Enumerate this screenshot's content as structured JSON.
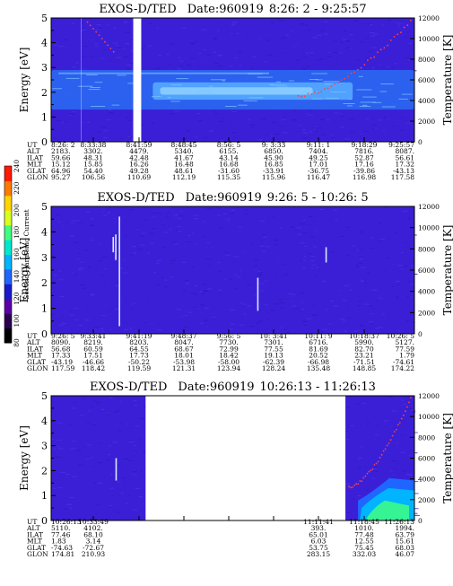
{
  "chart_data": [
    {
      "type": "heatmap",
      "title_prefix": "EXOS-D/TED",
      "date": "Date:960919",
      "time_range": "8:26: 2 - 9:25:57",
      "ylabel": "Energy [eV]",
      "y2label": "Temperature [K]",
      "ylim": [
        0,
        5
      ],
      "yticks": [
        "0",
        "1",
        "2",
        "3",
        "4",
        "5"
      ],
      "y2lim": [
        0,
        12000
      ],
      "y2ticks": [
        "0",
        "2000",
        "4000",
        "6000",
        "8000",
        "10000",
        "12000"
      ],
      "gaps": [
        [
          8.3,
          8.38
        ],
        [
          22.6,
          24.8
        ]
      ],
      "bands": [
        {
          "ylo": 1.3,
          "yhi": 2.9,
          "xfrom": 0,
          "xto": 100,
          "color": "#2a6cf2",
          "opacity": 0.85
        },
        {
          "ylo": 1.7,
          "yhi": 2.4,
          "xfrom": 28,
          "xto": 83,
          "color": "#55aaff",
          "opacity": 0.9
        },
        {
          "ylo": 1.9,
          "yhi": 2.2,
          "xfrom": 30,
          "xto": 72,
          "color": "#9ddcff",
          "opacity": 0.7
        }
      ],
      "temperature_dots": {
        "x_start": 68,
        "x_end": 99,
        "t_start": 4400,
        "t_end": 11700
      },
      "orbit": {
        "labels": [
          "UT",
          "ALT",
          "ILAT",
          "MLT",
          "GLAT",
          "GLON"
        ],
        "columns": [
          [
            "8:26: 2",
            "2183.",
            "59.66",
            "15.12",
            "64.96",
            "95.27"
          ],
          [
            "8:33:38",
            "3302.",
            "48.31",
            "15.85",
            "54.40",
            "106.56"
          ],
          [
            "8:41:59",
            "4479.",
            "42.48",
            "16.26",
            "49.28",
            "110.69"
          ],
          [
            "8:48:45",
            "5340.",
            "41.67",
            "16.48",
            "48.61",
            "112.19"
          ],
          [
            "8:56: 5",
            "6155.",
            "43.14",
            "16.68",
            "-31.60",
            "115.35"
          ],
          [
            "9: 3:33",
            "6850.",
            "45.90",
            "16.85",
            "-33.91",
            "115.96"
          ],
          [
            "9:11: 1",
            "7404.",
            "49.25",
            "17.01",
            "-36.75",
            "116.47"
          ],
          [
            "9:18:29",
            "7816.",
            "52.87",
            "17.16",
            "-39.86",
            "116.98"
          ],
          [
            "9:25:57",
            "8087.",
            "56.61",
            "17.32",
            "-43.13",
            "117.58"
          ]
        ]
      }
    },
    {
      "type": "heatmap",
      "title_prefix": "EXOS-D/TED",
      "date": "Date:960919",
      "time_range": "9:26: 5 - 10:26: 5",
      "ylabel": "Energy [eV]",
      "y2label": "Temperature [K]",
      "ylim": [
        0,
        5
      ],
      "yticks": [
        "0",
        "1",
        "2",
        "3",
        "4",
        "5"
      ],
      "y2lim": [
        0,
        12000
      ],
      "y2ticks": [
        "0",
        "2000",
        "4000",
        "6000",
        "8000",
        "10000",
        "12000"
      ],
      "gaps": [],
      "bands": [],
      "streaks": [
        {
          "x": 18.6,
          "y0": 0.3,
          "y1": 4.6,
          "color": "#d8e8ff"
        },
        {
          "x": 17.6,
          "y0": 2.9,
          "y1": 3.9,
          "color": "#d8e8ff"
        },
        {
          "x": 16.9,
          "y0": 3.2,
          "y1": 3.8,
          "color": "#d8e8ff"
        },
        {
          "x": 56.7,
          "y0": 0.9,
          "y1": 2.2,
          "color": "#d8e8ff"
        },
        {
          "x": 75.5,
          "y0": 2.8,
          "y1": 3.4,
          "color": "#d8e8ff"
        }
      ],
      "orbit": {
        "labels": [
          "UT",
          "ALT",
          "ILAT",
          "MLT",
          "GLAT",
          "GLON"
        ],
        "columns": [
          [
            "9:26: 5",
            "8090.",
            "56.68",
            "17.33",
            "-43.19",
            "117.59"
          ],
          [
            "9:33:41",
            "8219.",
            "60.59",
            "17.51",
            "-46.66",
            "118.42"
          ],
          [
            "9:41:19",
            "8203.",
            "64.55",
            "17.73",
            "-50.22",
            "119.59"
          ],
          [
            "9:48:37",
            "8047.",
            "68.67",
            "18.01",
            "-53.98",
            "121.31"
          ],
          [
            "9:56: 5",
            "7730.",
            "72.99",
            "18.42",
            "-58.00",
            "123.94"
          ],
          [
            "10: 3:41",
            "7301.",
            "77.55",
            "19.13",
            "-62.39",
            "128.24"
          ],
          [
            "10:11: 9",
            "6716.",
            "81.69",
            "20.52",
            "-66.98",
            "135.48"
          ],
          [
            "10:18:37",
            "5990.",
            "82.70",
            "23.21",
            "-71.51",
            "148.85"
          ],
          [
            "10:26: 5",
            "5127.",
            "77.59",
            "1.79",
            "-74.61",
            "174.22"
          ]
        ]
      }
    },
    {
      "type": "heatmap",
      "title_prefix": "EXOS-D/TED",
      "date": "Date:960919",
      "time_range": "10:26:13 - 11:26:13",
      "ylabel": "Energy [eV]",
      "y2label": "Temperature [K]",
      "ylim": [
        0,
        5
      ],
      "yticks": [
        "0",
        "1",
        "2",
        "3",
        "4",
        "5"
      ],
      "y2lim": [
        0,
        12000
      ],
      "y2ticks": [
        "0",
        "2000",
        "4000",
        "6000",
        "8000",
        "10000",
        "12000"
      ],
      "gaps": [
        [
          26.0,
          81.0
        ]
      ],
      "bands": [],
      "streaks": [
        {
          "x": 17.7,
          "y0": 1.6,
          "y1": 2.5,
          "color": "#d8e8ff"
        }
      ],
      "aurora": {
        "xfrom": 82,
        "xto": 100
      },
      "temperature_dots": {
        "x_start": 82,
        "x_end": 99,
        "t_start": 3200,
        "t_end": 11800
      },
      "orbit": {
        "labels": [
          "UT",
          "ALT",
          "ILAT",
          "MLT",
          "GLAT",
          "GLON"
        ],
        "columns": [
          [
            "10:26:13",
            "5110.",
            "77.46",
            "1.83",
            "-74.63",
            "174.81"
          ],
          [
            "10:33:49",
            "4102.",
            "68.10",
            "3.14",
            "-72.67",
            "210.93"
          ],
          [
            "",
            "",
            "",
            "",
            "",
            ""
          ],
          [
            "",
            "",
            "",
            "",
            "",
            ""
          ],
          [
            "",
            "",
            "",
            "",
            "",
            ""
          ],
          [
            "",
            "",
            "",
            "",
            "",
            ""
          ],
          [
            "11:11:41",
            "393.",
            "65.01",
            "6.03",
            "53.75",
            "283.15"
          ],
          [
            "11:18:45",
            "1010.",
            "77.48",
            "12.55",
            "75.45",
            "332.03"
          ],
          [
            "11:26:13",
            "1994.",
            "63.79",
            "15.61",
            "68.03",
            "46.07"
          ]
        ]
      }
    }
  ],
  "colorbar": {
    "label": "Second Harmonic Current",
    "ticks": [
      "80",
      "100",
      "120",
      "140",
      "160",
      "180",
      "200",
      "220",
      "240"
    ],
    "colors": [
      "#000000",
      "#2a0050",
      "#5a00a8",
      "#1a1acc",
      "#1e66ff",
      "#00b4ff",
      "#00e8d0",
      "#40ff80",
      "#d8ff20",
      "#ffd400",
      "#ff7a00",
      "#ff1a00"
    ]
  }
}
